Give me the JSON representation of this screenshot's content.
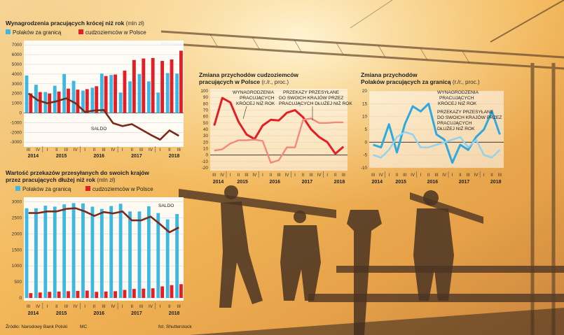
{
  "colors": {
    "blue": "#3db8e3",
    "red": "#e31e24",
    "saldo": "#7a2a18"
  },
  "quarters": [
    "III",
    "IV",
    "I",
    "II",
    "III",
    "IV",
    "I",
    "II",
    "III",
    "IV",
    "I",
    "II",
    "III",
    "IV",
    "I",
    "II",
    "III"
  ],
  "years": [
    "2014",
    "2015",
    "2016",
    "2017",
    "2018"
  ],
  "source": "Źródło: Narodowy Bank Polski",
  "initials": "MC",
  "photo_credit": "fot. Shutterstock",
  "chart_data": [
    {
      "type": "bar",
      "title": "Wynagrodzenia pracujących krócej niż rok",
      "unit": "(mln zł)",
      "series": [
        {
          "name": "Polaków za granicą",
          "values": [
            3850,
            2900,
            2150,
            2800,
            4000,
            3300,
            2300,
            2600,
            4050,
            3900,
            2100,
            3250,
            4000,
            3250,
            2100,
            4100,
            4050
          ]
        },
        {
          "name": "cudzoziemców w Polsce",
          "values": [
            2000,
            2150,
            2000,
            2200,
            2500,
            2400,
            2450,
            2750,
            3800,
            3950,
            4350,
            5450,
            5600,
            5650,
            5350,
            5500,
            6400
          ]
        }
      ],
      "saldo": [
        2000,
        1300,
        1000,
        1200,
        1500,
        1000,
        100,
        250,
        300,
        -1050,
        -1350,
        -1150,
        -1700,
        -2250,
        -2750,
        -1800,
        -2350
      ],
      "saldo_label": "SALDO",
      "yticks": [
        -3000,
        -2000,
        -1000,
        0,
        1000,
        2000,
        3000,
        4000,
        5000,
        6000,
        7000
      ],
      "ylim": [
        -3200,
        7300
      ]
    },
    {
      "type": "bar",
      "title": "Wartość przekazów przesyłanych do swoich krajów",
      "title2": "przez pracujących dłużej niż rok",
      "unit": "(mln zł)",
      "series": [
        {
          "name": "Polaków za granicą",
          "values": [
            2800,
            2800,
            2880,
            2850,
            2920,
            2960,
            2950,
            2850,
            2780,
            2870,
            2940,
            2700,
            2700,
            2860,
            2650,
            2450,
            2620
          ]
        },
        {
          "name": "cudzoziemców w Polsce",
          "values": [
            150,
            170,
            190,
            200,
            210,
            220,
            230,
            190,
            200,
            210,
            250,
            280,
            290,
            300,
            360,
            400,
            430
          ]
        }
      ],
      "saldo": [
        2650,
        2650,
        2700,
        2700,
        2780,
        2800,
        2700,
        2560,
        2680,
        2640,
        2700,
        2420,
        2420,
        2540,
        2300,
        2050,
        2200
      ],
      "saldo_label": "SALDO",
      "yticks": [
        0,
        500,
        1000,
        1500,
        2000,
        2500,
        3000
      ],
      "ylim": [
        0,
        3100
      ]
    },
    {
      "type": "line",
      "title": "Zmiana przychodów cudzoziemców",
      "title2": "pracujących w Polsce",
      "unit": "(r./r., proc.)",
      "series": [
        {
          "name": "WYNAGRODZENIA PRACUJĄCYCH KRÓCEJ NIŻ ROK",
          "values": [
            46,
            89,
            82,
            52,
            32,
            25,
            46,
            55,
            54,
            66,
            70,
            59,
            40,
            28,
            20,
            2,
            13
          ]
        },
        {
          "name": "PRZEKAZY PRZESYŁANE DO SWOICH KRAJÓW PRZEZ PRACUJĄCYCH DŁUŻEJ NIŻ ROK",
          "values": [
            7,
            9,
            18,
            23,
            23,
            24,
            22,
            -12,
            -8,
            12,
            12,
            55,
            57,
            50,
            50,
            51,
            51
          ]
        }
      ],
      "yticks": [
        -20,
        -10,
        0,
        10,
        20,
        30,
        40,
        50,
        60,
        70,
        80,
        90,
        100
      ],
      "ylim": [
        -20,
        100
      ]
    },
    {
      "type": "line",
      "title": "Zmiana przychodów",
      "title2": "Polaków pracujących za granicą",
      "unit": "(r./r., proc.)",
      "series": [
        {
          "name": "WYNAGRODZENIA PRACUJĄCYCH KRÓCEJ NIŻ ROK",
          "values": [
            -1,
            -2,
            7,
            -4,
            7,
            14,
            12,
            15,
            3,
            1,
            -8,
            -1,
            -3,
            2,
            5,
            12,
            3
          ]
        },
        {
          "name": "PRZEKAZY PRZESYŁANE DO SWOICH KRAJÓW PRZEZ PRACUJĄCYCH DŁUŻEJ NIŻ ROK",
          "values": [
            -5,
            -6,
            -3,
            2,
            4,
            3,
            -2,
            -2,
            -1,
            0,
            1,
            2,
            -2,
            1,
            -5,
            -6,
            -3
          ]
        }
      ],
      "yticks": [
        -10,
        -5,
        0,
        5,
        10,
        15,
        20
      ],
      "ylim": [
        -10,
        20
      ]
    }
  ]
}
